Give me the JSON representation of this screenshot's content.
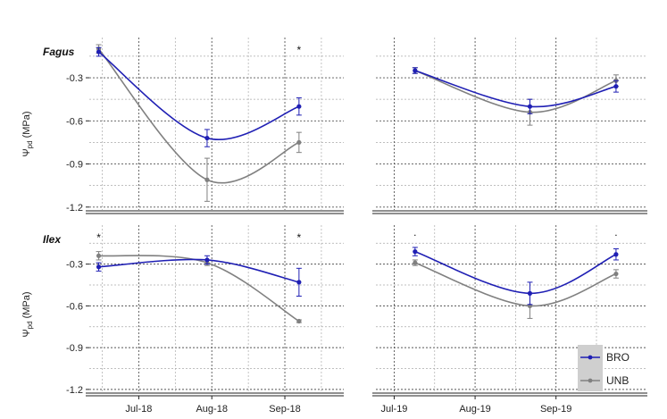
{
  "chart_data": {
    "type": "line",
    "ylabel": "Ψpd (MPa)",
    "ylabel_symbol": "Ψ",
    "ylabel_subscript": "pd",
    "ylabel_unit": "(MPa)",
    "ylim": [
      -1.22,
      -0.02
    ],
    "yticks": [
      -1.2,
      -0.9,
      -0.6,
      -0.3
    ],
    "ytick_labels": [
      "-1.2",
      "-0.9",
      "-0.6",
      "-0.3"
    ],
    "grid": true,
    "legend": {
      "placement": "bottom-right",
      "entries": [
        {
          "name": "BRO",
          "color": "#1f1fb4"
        },
        {
          "name": "UNB",
          "color": "#808080"
        }
      ]
    },
    "columns": [
      {
        "xlim": [
          "2018-06-10",
          "2018-09-26"
        ],
        "xticks": [
          "2018-07-01",
          "2018-08-01",
          "2018-09-01"
        ],
        "xtick_labels": [
          "Jul-18",
          "Aug-18",
          "Sep-18"
        ]
      },
      {
        "xlim": [
          "2019-06-24",
          "2019-10-06"
        ],
        "xticks": [
          "2019-07-01",
          "2019-08-01",
          "2019-09-01"
        ],
        "xtick_labels": [
          "Jul-19",
          "Aug-19",
          "Sep-19"
        ]
      }
    ],
    "panels": [
      {
        "row": 0,
        "col": 0,
        "label": "Fagus",
        "series": [
          {
            "name": "BRO",
            "x": [
              "2018-06-14",
              "2018-07-30",
              "2018-09-07"
            ],
            "y": [
              -0.12,
              -0.72,
              -0.5
            ],
            "err": [
              0.03,
              0.06,
              0.06
            ]
          },
          {
            "name": "UNB",
            "x": [
              "2018-06-14",
              "2018-07-30",
              "2018-09-07"
            ],
            "y": [
              -0.1,
              -1.01,
              -0.75
            ],
            "err": [
              0.03,
              0.15,
              0.07
            ]
          }
        ],
        "significance": [
          {
            "x": "2018-09-07",
            "mark": "*"
          }
        ]
      },
      {
        "row": 0,
        "col": 1,
        "label": "",
        "series": [
          {
            "name": "BRO",
            "x": [
              "2019-07-09",
              "2019-08-22",
              "2019-09-24"
            ],
            "y": [
              -0.25,
              -0.5,
              -0.36
            ],
            "err": [
              0.02,
              0.05,
              0.04
            ]
          },
          {
            "name": "UNB",
            "x": [
              "2019-07-09",
              "2019-08-22",
              "2019-09-24"
            ],
            "y": [
              -0.25,
              -0.54,
              -0.32
            ],
            "err": [
              0.02,
              0.09,
              0.04
            ]
          }
        ],
        "significance": []
      },
      {
        "row": 1,
        "col": 0,
        "label": "Ilex",
        "series": [
          {
            "name": "BRO",
            "x": [
              "2018-06-14",
              "2018-07-30",
              "2018-09-07"
            ],
            "y": [
              -0.32,
              -0.27,
              -0.43
            ],
            "err": [
              0.03,
              0.03,
              0.1
            ]
          },
          {
            "name": "UNB",
            "x": [
              "2018-06-14",
              "2018-07-30",
              "2018-09-07"
            ],
            "y": [
              -0.24,
              -0.29,
              -0.71
            ],
            "err": [
              0.03,
              0.02,
              0.01
            ]
          }
        ],
        "significance": [
          {
            "x": "2018-06-14",
            "mark": "*"
          },
          {
            "x": "2018-09-07",
            "mark": "*"
          }
        ]
      },
      {
        "row": 1,
        "col": 1,
        "label": "",
        "series": [
          {
            "name": "BRO",
            "x": [
              "2019-07-09",
              "2019-08-22",
              "2019-09-24"
            ],
            "y": [
              -0.21,
              -0.51,
              -0.23
            ],
            "err": [
              0.03,
              0.08,
              0.04
            ]
          },
          {
            "name": "UNB",
            "x": [
              "2019-07-09",
              "2019-08-22",
              "2019-09-24"
            ],
            "y": [
              -0.29,
              -0.6,
              -0.37
            ],
            "err": [
              0.02,
              0.09,
              0.03
            ]
          }
        ],
        "significance": [
          {
            "x": "2019-07-09",
            "mark": "."
          },
          {
            "x": "2019-09-24",
            "mark": "."
          }
        ]
      }
    ]
  }
}
